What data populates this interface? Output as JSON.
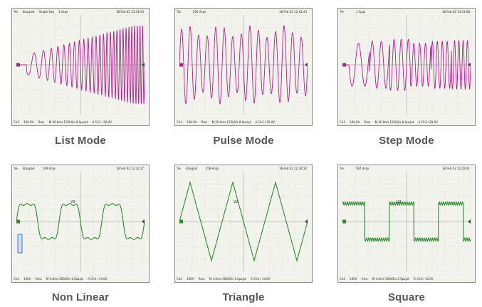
{
  "colors": {
    "magenta": "#b0208c",
    "green": "#2f8a2f",
    "grid": "#bdbdb0",
    "marker": "#3a7ad6"
  },
  "panels": [
    {
      "caption": "List Mode",
      "status": "Stopped",
      "mode": "Single Seq",
      "acqs": "1 Acqs",
      "date": "18 Feb 02 13:33:43",
      "ch": "Ch3",
      "volts": "100.0V",
      "rms": "Rms",
      "horiz": "M 20.0ms 125kS/s 8.0µs/pt",
      "trig": "A Ch3 / 20.0V",
      "trace_color": "magenta",
      "wave": "list"
    },
    {
      "caption": "Pulse Mode",
      "status": "",
      "mode": "",
      "acqs": "556 Acqs",
      "date": "18 Feb 02 12:43:43",
      "ch": "Ch3",
      "volts": "100.0V",
      "rms": "Rms",
      "horiz": "M 20.0ms 125kS/s 8.0µs/pt",
      "trig": "A Ch3 / 20.0V",
      "trace_color": "magenta",
      "wave": "pulse"
    },
    {
      "caption": "Step Mode",
      "status": "",
      "mode": "",
      "acqs": "1 Acqs",
      "date": "18 Feb 02 13:01:08",
      "ch": "Ch3",
      "volts": "100.0V",
      "rms": "Rms",
      "horiz": "M 20.0ms 125kS/s 8.0µs/pt",
      "trig": "A Ch3 / 20.0V",
      "trace_color": "magenta",
      "wave": "step"
    },
    {
      "caption": "Non Linear",
      "status": "Stopped",
      "mode": "",
      "acqs": "149 Acqs",
      "date": "18 Feb 02 12:32:27",
      "ch": "Ch4",
      "volts": "100V",
      "rms": "Rms",
      "horiz": "M 4.0ms 500kS/s 2.0µs/pt",
      "trig": "A Ch4 / 14.0V",
      "trace_color": "green",
      "wave": "nonlinear",
      "trace_label": "V2"
    },
    {
      "caption": "Triangle",
      "status": "Stopped",
      "mode": "",
      "acqs": "258 Acqs",
      "date": "18 Feb 02 12:34:32",
      "ch": "Ch4",
      "volts": "100V",
      "rms": "Rms",
      "horiz": "M 4.0ms 500kS/s 2.0µs/pt",
      "trig": "A Ch4 / 14.0V",
      "trace_color": "green",
      "wave": "triangle",
      "trace_label": "V2"
    },
    {
      "caption": "Square",
      "status": "",
      "mode": "",
      "acqs": "587 Acqs",
      "date": "18 Feb 02 12:35:01",
      "ch": "Ch4",
      "volts": "100V",
      "rms": "Rms",
      "horiz": "M 4.0ms 500kS/s 2.0µs/pt",
      "trig": "A Ch4 / 14.0V",
      "trace_color": "green",
      "wave": "square",
      "trace_label": "V2"
    }
  ]
}
